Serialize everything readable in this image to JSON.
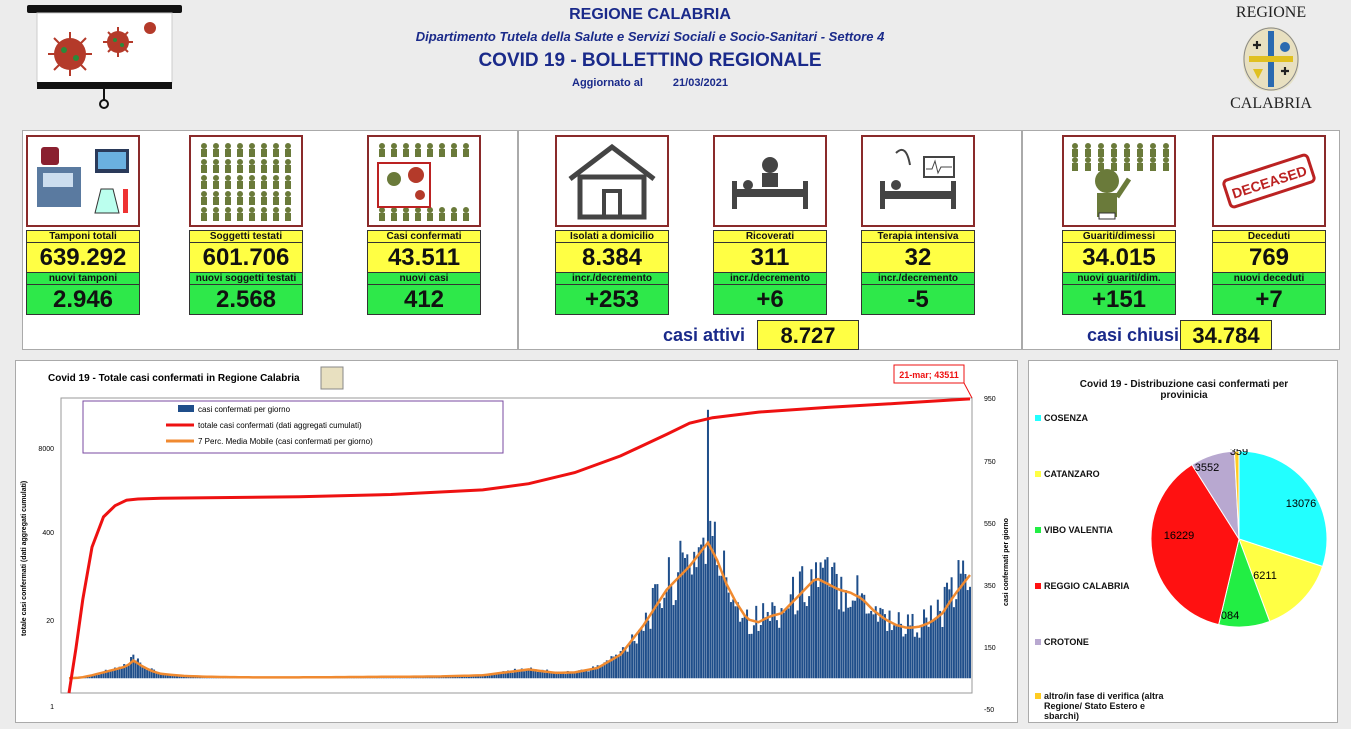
{
  "header": {
    "region": "REGIONE CALABRIA",
    "department": "Dipartimento Tutela della Salute e Servizi Sociali e Socio-Sanitari - Settore 4",
    "bulletin": "COVID 19 - BOLLETTINO REGIONALE",
    "updated_label": "Aggiornato al",
    "updated_date": "21/03/2021",
    "logo_top": "REGIONE",
    "logo_bottom": "CALABRIA"
  },
  "kpis": [
    {
      "label": "Tamponi totali",
      "value": "639.292",
      "sub_label": "nuovi tamponi",
      "sub_value": "2.946",
      "icon": "lab-equipment-icon"
    },
    {
      "label": "Soggetti testati",
      "value": "601.706",
      "sub_label": "nuovi soggetti testati",
      "sub_value": "2.568",
      "icon": "people-grid-icon"
    },
    {
      "label": "Casi confermati",
      "value": "43.511",
      "sub_label": "nuovi casi",
      "sub_value": "412",
      "icon": "infected-person-icon"
    },
    {
      "label": "Isolati a domicilio",
      "value": "8.384",
      "sub_label": "incr./decremento",
      "sub_value": "+253",
      "icon": "house-icon"
    },
    {
      "label": "Ricoverati",
      "value": "311",
      "sub_label": "incr./decremento",
      "sub_value": "+6",
      "icon": "hospital-bed-icon"
    },
    {
      "label": "Terapia intensiva",
      "value": "32",
      "sub_label": "incr./decremento",
      "sub_value": "-5",
      "icon": "icu-bed-icon"
    },
    {
      "label": "Guariti/dimessi",
      "value": "34.015",
      "sub_label": "nuovi guariti/dim.",
      "sub_value": "+151",
      "icon": "recovered-person-icon"
    },
    {
      "label": "Deceduti",
      "value": "769",
      "sub_label": "nuovi deceduti",
      "sub_value": "+7",
      "icon": "deceased-stamp-icon"
    }
  ],
  "summary": {
    "active_label": "casi attivi",
    "active_value": "8.727",
    "closed_label": "casi chiusi",
    "closed_value": "34.784"
  },
  "deceased_stamp": "DECEASED",
  "colors": {
    "yellow": "#ffff44",
    "green": "#2ee84a",
    "blue": "#1f4e8a",
    "red": "#ee1111",
    "orange": "#f08a30",
    "title_blue": "#1a2a8a"
  },
  "chart_data": [
    {
      "type": "bar+line",
      "title": "Covid 19 - Totale casi confermati in Regione Calabria",
      "ylabel": "totale casi confermati (dati aggregati cumulati)",
      "y2label": "casi confermati  per giorno",
      "left_ticks": [
        "8000",
        "400",
        "20",
        "1"
      ],
      "right_ticks": [
        "950",
        "750",
        "550",
        "350",
        "150",
        "-50"
      ],
      "y2lim": [
        -50,
        950
      ],
      "yscale": "log",
      "annotation": "21-mar; 43511",
      "series": [
        {
          "name": "casi confermati per giorno",
          "kind": "bar",
          "axis": "right"
        },
        {
          "name": "totale casi confermati (dati aggregati cumulati)",
          "kind": "line",
          "axis": "left"
        },
        {
          "name": "7 Perc. Media Mobile (casi confermati per giorno)",
          "kind": "line",
          "axis": "right"
        }
      ],
      "daily_points": [
        [
          0,
          0
        ],
        [
          5,
          2
        ],
        [
          10,
          10
        ],
        [
          15,
          20
        ],
        [
          20,
          30
        ],
        [
          25,
          40
        ],
        [
          28,
          60
        ],
        [
          32,
          40
        ],
        [
          36,
          25
        ],
        [
          40,
          15
        ],
        [
          50,
          8
        ],
        [
          60,
          5
        ],
        [
          80,
          3
        ],
        [
          100,
          3
        ],
        [
          120,
          4
        ],
        [
          140,
          5
        ],
        [
          160,
          6
        ],
        [
          180,
          10
        ],
        [
          190,
          20
        ],
        [
          200,
          30
        ],
        [
          205,
          25
        ],
        [
          212,
          18
        ],
        [
          220,
          20
        ],
        [
          230,
          35
        ],
        [
          240,
          80
        ],
        [
          250,
          180
        ],
        [
          260,
          300
        ],
        [
          265,
          340
        ],
        [
          270,
          380
        ],
        [
          274,
          420
        ],
        [
          278,
          460
        ],
        [
          282,
          400
        ],
        [
          286,
          320
        ],
        [
          290,
          260
        ],
        [
          295,
          200
        ],
        [
          300,
          190
        ],
        [
          305,
          210
        ],
        [
          310,
          220
        ],
        [
          315,
          260
        ],
        [
          320,
          300
        ],
        [
          325,
          340
        ],
        [
          330,
          320
        ],
        [
          335,
          300
        ],
        [
          340,
          290
        ],
        [
          345,
          270
        ],
        [
          350,
          230
        ],
        [
          355,
          200
        ],
        [
          360,
          180
        ],
        [
          365,
          170
        ],
        [
          370,
          175
        ],
        [
          375,
          190
        ],
        [
          380,
          220
        ],
        [
          385,
          280
        ],
        [
          389,
          320
        ],
        [
          392,
          350
        ]
      ],
      "cumulative_points": [
        [
          0,
          1
        ],
        [
          3,
          5
        ],
        [
          6,
          30
        ],
        [
          10,
          200
        ],
        [
          15,
          600
        ],
        [
          20,
          900
        ],
        [
          25,
          1100
        ],
        [
          30,
          1150
        ],
        [
          40,
          1180
        ],
        [
          60,
          1200
        ],
        [
          100,
          1250
        ],
        [
          140,
          1350
        ],
        [
          180,
          1600
        ],
        [
          200,
          2000
        ],
        [
          220,
          3000
        ],
        [
          240,
          5500
        ],
        [
          260,
          12000
        ],
        [
          270,
          18000
        ],
        [
          280,
          22000
        ],
        [
          300,
          27000
        ],
        [
          330,
          32000
        ],
        [
          360,
          37000
        ],
        [
          392,
          43511
        ]
      ]
    },
    {
      "type": "pie",
      "title": "Covid 19 - Distribuzione casi confermati per provinicia",
      "slices": [
        {
          "name": "COSENZA",
          "value": 13076,
          "color": "#22ffff"
        },
        {
          "name": "CATANZARO",
          "value": 6211,
          "color": "#ffff44"
        },
        {
          "name": "VIBO VALENTIA",
          "value": 4084,
          "color": "#22ee44"
        },
        {
          "name": "REGGIO CALABRIA",
          "value": 16229,
          "color": "#ff1111"
        },
        {
          "name": "CROTONE",
          "value": 3552,
          "color": "#b8a8d0"
        },
        {
          "name": "altro/in fase di verifica (altra Regione/ Stato Estero e sbarchi)",
          "value": 359,
          "color": "#ffcc22"
        }
      ]
    }
  ]
}
